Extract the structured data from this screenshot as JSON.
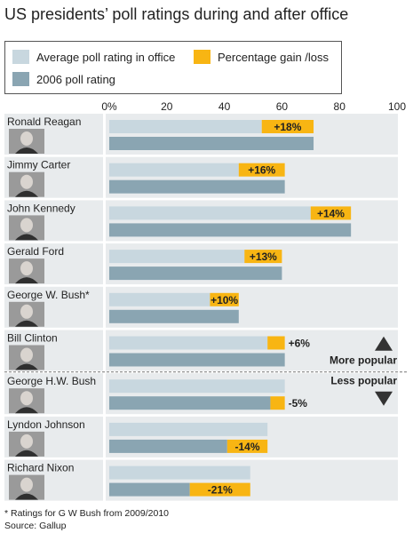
{
  "title": "US presidents’ poll ratings during and after office",
  "legend": {
    "in_office": "Average poll rating in office",
    "gain_loss": "Percentage gain /loss",
    "rating_2006": "2006 poll rating"
  },
  "colors": {
    "in_office": "#c8d7df",
    "rating_2006": "#8aa5b2",
    "gain_loss": "#f8b513",
    "row_bg": "#e8ebed",
    "photo_bg": "#9a9a9a"
  },
  "popularity": {
    "more": "More popular",
    "less": "Less popular"
  },
  "footnotes": {
    "note": "* Ratings for G W Bush from 2009/2010",
    "source": "Source: Gallup"
  },
  "chart_data": {
    "type": "bar",
    "x_ticks": [
      "0%",
      "20",
      "40",
      "60",
      "80",
      "100"
    ],
    "xlim": [
      0,
      100
    ],
    "presidents": [
      {
        "name": "Ronald Reagan",
        "in_office": 53,
        "rating_2006": 71,
        "change_label": "+18%"
      },
      {
        "name": "Jimmy Carter",
        "in_office": 45,
        "rating_2006": 61,
        "change_label": "+16%"
      },
      {
        "name": "John Kennedy",
        "in_office": 70,
        "rating_2006": 84,
        "change_label": "+14%"
      },
      {
        "name": "Gerald Ford",
        "in_office": 47,
        "rating_2006": 60,
        "change_label": "+13%"
      },
      {
        "name": "George W. Bush*",
        "in_office": 35,
        "rating_2006": 45,
        "change_label": "+10%"
      },
      {
        "name": "Bill Clinton",
        "in_office": 55,
        "rating_2006": 61,
        "change_label": "+6%"
      },
      {
        "name": "George H.W. Bush",
        "in_office": 61,
        "rating_2006": 56,
        "change_label": "-5%"
      },
      {
        "name": "Lyndon Johnson",
        "in_office": 55,
        "rating_2006": 41,
        "change_label": "-14%"
      },
      {
        "name": "Richard Nixon",
        "in_office": 49,
        "rating_2006": 28,
        "change_label": "-21%"
      }
    ]
  }
}
